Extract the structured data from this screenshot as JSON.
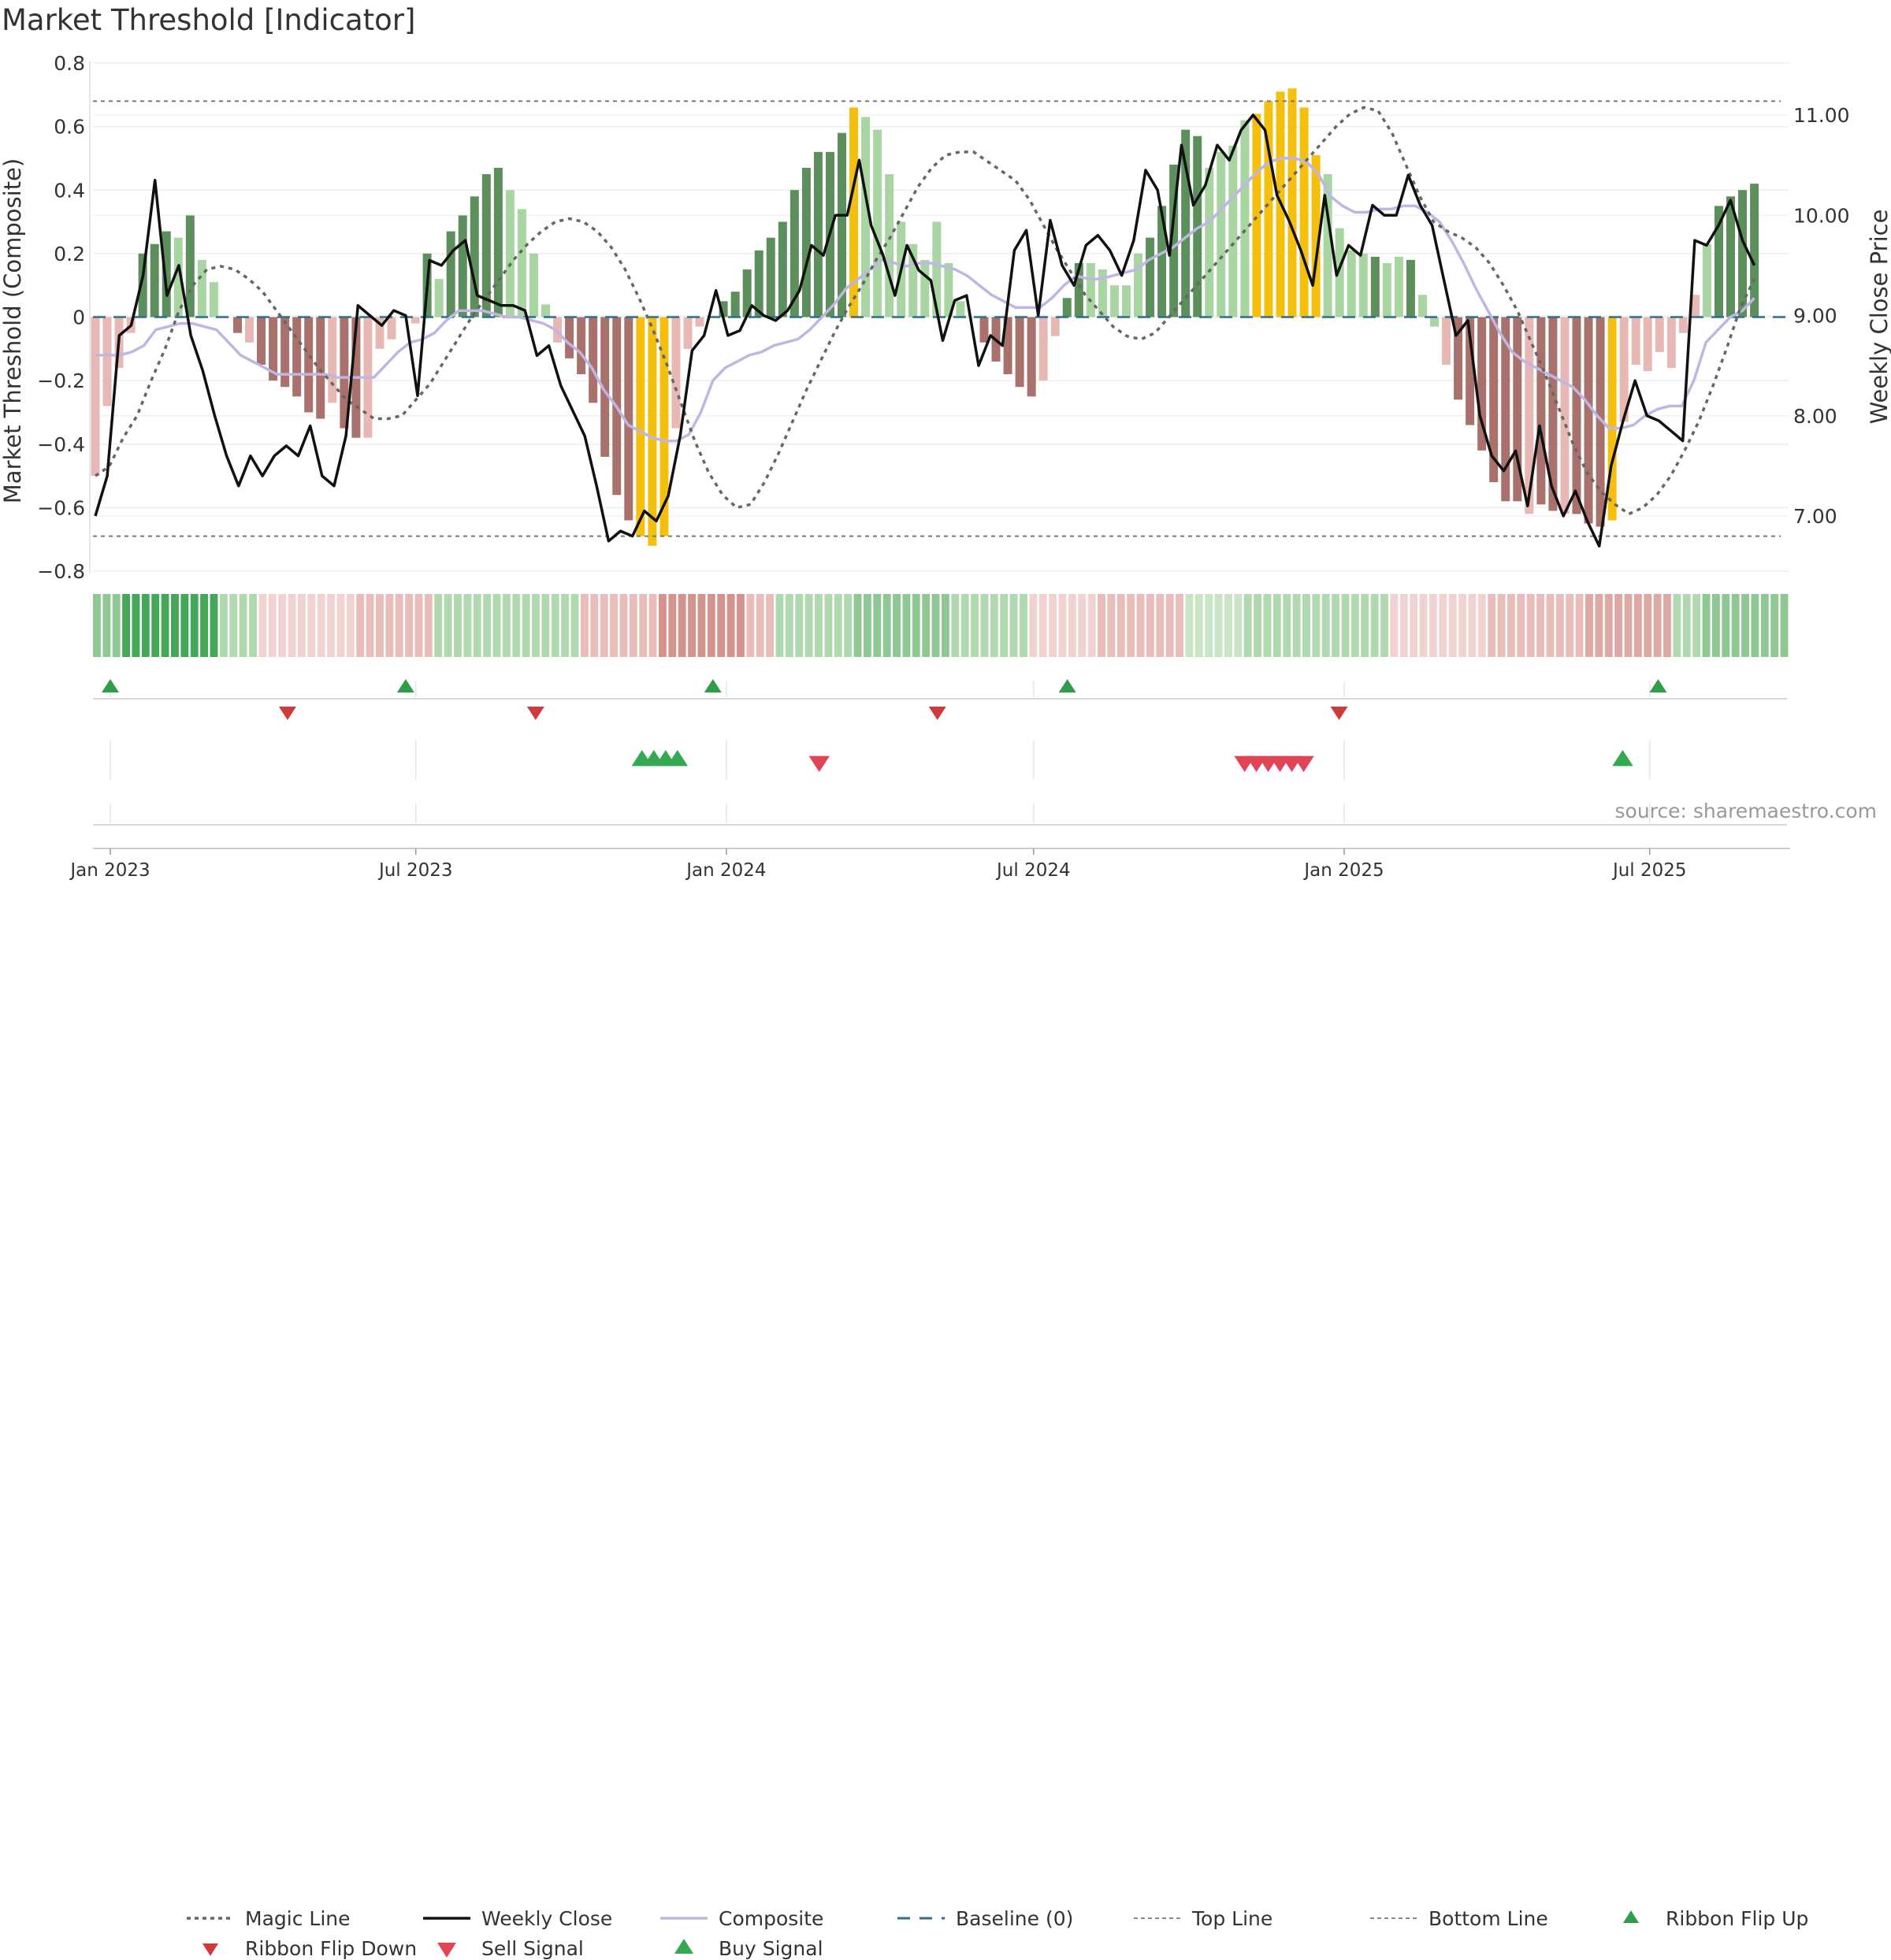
{
  "chart_data": {
    "type": "bar",
    "title": "Market Threshold [Indicator]",
    "ylabel_left": "Market Threshold (Composite)",
    "ylabel_right": "Weekly Close Price",
    "source": "source: sharemaestro.com",
    "ylim_left": [
      -0.8,
      0.8
    ],
    "ylim_right": [
      6.0,
      11.4
    ],
    "yticks_left": [
      "0.8",
      "0.6",
      "0.4",
      "0.2",
      "0",
      "−0.2",
      "−0.4",
      "−0.6",
      "−0.8"
    ],
    "yticks_right": [
      "11.00",
      "10.00",
      "9.00",
      "8.00",
      "7.00"
    ],
    "x_ticks": [
      "Jan 2023",
      "Jul 2023",
      "Jan 2024",
      "Jul 2024",
      "Jan 2025",
      "Jul 2025"
    ],
    "top_line": 0.68,
    "bottom_line": -0.69,
    "bar_colors": {
      "strong_up": "#5c8f5c",
      "weak_up": "#a8d5a2",
      "strong_down": "#a8716c",
      "weak_down": "#e8b8b4",
      "extreme": "#f5bf0e"
    },
    "composite_bars": [
      -0.5,
      -0.28,
      -0.16,
      -0.05,
      0.2,
      0.23,
      0.27,
      0.25,
      0.32,
      0.18,
      0.11,
      0.0,
      -0.05,
      -0.08,
      -0.15,
      -0.2,
      -0.22,
      -0.25,
      -0.3,
      -0.32,
      -0.27,
      -0.35,
      -0.38,
      -0.38,
      -0.1,
      -0.07,
      0.0,
      -0.02,
      0.2,
      0.12,
      0.27,
      0.32,
      0.38,
      0.45,
      0.47,
      0.4,
      0.34,
      0.2,
      0.04,
      -0.08,
      -0.13,
      -0.18,
      -0.27,
      -0.44,
      -0.56,
      -0.64,
      -0.69,
      -0.72,
      -0.69,
      -0.35,
      -0.1,
      -0.03,
      0.0,
      0.05,
      0.08,
      0.15,
      0.21,
      0.25,
      0.3,
      0.4,
      0.47,
      0.52,
      0.52,
      0.58,
      0.66,
      0.63,
      0.59,
      0.45,
      0.3,
      0.23,
      0.18,
      0.3,
      0.17,
      0.05,
      0.0,
      -0.08,
      -0.14,
      -0.18,
      -0.22,
      -0.25,
      -0.2,
      -0.06,
      0.06,
      0.17,
      0.17,
      0.15,
      0.1,
      0.1,
      0.2,
      0.25,
      0.35,
      0.48,
      0.59,
      0.57,
      0.47,
      0.52,
      0.54,
      0.62,
      0.64,
      0.68,
      0.71,
      0.72,
      0.66,
      0.51,
      0.45,
      0.28,
      0.21,
      0.2,
      0.19,
      0.17,
      0.19,
      0.18,
      0.07,
      -0.03,
      -0.15,
      -0.26,
      -0.34,
      -0.42,
      -0.52,
      -0.58,
      -0.58,
      -0.62,
      -0.59,
      -0.61,
      -0.62,
      -0.62,
      -0.65,
      -0.66,
      -0.64,
      -0.33,
      -0.15,
      -0.17,
      -0.11,
      -0.16,
      -0.05,
      0.07,
      0.23,
      0.35,
      0.38,
      0.4,
      0.42
    ],
    "bar_classes": [
      "wd",
      "wd",
      "wd",
      "wd",
      "su",
      "su",
      "su",
      "wu",
      "su",
      "wu",
      "wu",
      "wu",
      "sd",
      "wd",
      "sd",
      "sd",
      "sd",
      "sd",
      "sd",
      "sd",
      "wd",
      "sd",
      "sd",
      "wd",
      "wd",
      "wd",
      "wu",
      "wd",
      "su",
      "wu",
      "su",
      "su",
      "su",
      "su",
      "su",
      "wu",
      "wu",
      "wu",
      "wu",
      "wd",
      "sd",
      "sd",
      "sd",
      "sd",
      "sd",
      "sd",
      "ex",
      "ex",
      "ex",
      "wd",
      "wd",
      "wd",
      "wu",
      "su",
      "su",
      "su",
      "su",
      "su",
      "su",
      "su",
      "su",
      "su",
      "su",
      "su",
      "ex",
      "wu",
      "wu",
      "wu",
      "wu",
      "wu",
      "wu",
      "wu",
      "wu",
      "wu",
      "wu",
      "sd",
      "sd",
      "sd",
      "sd",
      "sd",
      "wd",
      "wd",
      "su",
      "su",
      "wu",
      "wu",
      "wu",
      "wu",
      "wu",
      "su",
      "su",
      "su",
      "su",
      "su",
      "wu",
      "wu",
      "wu",
      "wu",
      "ex",
      "ex",
      "ex",
      "ex",
      "ex",
      "ex",
      "wu",
      "wu",
      "wu",
      "wu",
      "su",
      "wu",
      "wu",
      "su",
      "wu",
      "wu",
      "wd",
      "sd",
      "sd",
      "sd",
      "sd",
      "sd",
      "sd",
      "wd",
      "sd",
      "sd",
      "wd",
      "sd",
      "sd",
      "sd",
      "ex",
      "wd",
      "wd",
      "wd",
      "wd",
      "wd",
      "wd",
      "wd",
      "wu",
      "su",
      "su",
      "su",
      "su",
      "su"
    ],
    "composite_line": [
      -0.12,
      -0.12,
      -0.12,
      -0.11,
      -0.09,
      -0.04,
      -0.03,
      -0.02,
      -0.02,
      -0.03,
      -0.04,
      -0.08,
      -0.12,
      -0.14,
      -0.16,
      -0.18,
      -0.18,
      -0.18,
      -0.18,
      -0.18,
      -0.19,
      -0.19,
      -0.19,
      -0.19,
      -0.15,
      -0.11,
      -0.08,
      -0.07,
      -0.05,
      -0.01,
      0.02,
      0.02,
      0.02,
      0.01,
      0.0,
      0.0,
      -0.01,
      -0.02,
      -0.04,
      -0.08,
      -0.11,
      -0.16,
      -0.23,
      -0.28,
      -0.34,
      -0.36,
      -0.38,
      -0.39,
      -0.39,
      -0.37,
      -0.3,
      -0.2,
      -0.16,
      -0.14,
      -0.12,
      -0.11,
      -0.09,
      -0.08,
      -0.07,
      -0.04,
      0.0,
      0.04,
      0.09,
      0.12,
      0.15,
      0.18,
      0.17,
      0.16,
      0.17,
      0.17,
      0.16,
      0.15,
      0.13,
      0.1,
      0.07,
      0.05,
      0.03,
      0.03,
      0.03,
      0.06,
      0.1,
      0.13,
      0.12,
      0.12,
      0.13,
      0.14,
      0.15,
      0.18,
      0.2,
      0.22,
      0.25,
      0.28,
      0.3,
      0.34,
      0.38,
      0.42,
      0.46,
      0.49,
      0.5,
      0.5,
      0.49,
      0.45,
      0.38,
      0.35,
      0.33,
      0.33,
      0.34,
      0.34,
      0.35,
      0.35,
      0.33,
      0.3,
      0.24,
      0.17,
      0.09,
      0.02,
      -0.05,
      -0.11,
      -0.14,
      -0.16,
      -0.18,
      -0.2,
      -0.22,
      -0.26,
      -0.31,
      -0.35,
      -0.35,
      -0.34,
      -0.31,
      -0.29,
      -0.28,
      -0.28,
      -0.2,
      -0.08,
      -0.04,
      0.0,
      0.02,
      0.06
    ],
    "magic_line": [
      -0.5,
      -0.47,
      -0.38,
      -0.31,
      -0.2,
      -0.1,
      0.02,
      0.1,
      0.15,
      0.16,
      0.15,
      0.12,
      0.08,
      0.02,
      -0.04,
      -0.1,
      -0.16,
      -0.21,
      -0.26,
      -0.29,
      -0.32,
      -0.32,
      -0.31,
      -0.26,
      -0.21,
      -0.14,
      -0.07,
      0.0,
      0.06,
      0.12,
      0.18,
      0.23,
      0.27,
      0.3,
      0.31,
      0.3,
      0.27,
      0.22,
      0.15,
      0.06,
      -0.04,
      -0.15,
      -0.27,
      -0.39,
      -0.49,
      -0.56,
      -0.6,
      -0.59,
      -0.52,
      -0.43,
      -0.33,
      -0.23,
      -0.14,
      -0.05,
      0.03,
      0.1,
      0.18,
      0.25,
      0.33,
      0.41,
      0.47,
      0.51,
      0.52,
      0.52,
      0.49,
      0.46,
      0.43,
      0.37,
      0.29,
      0.21,
      0.14,
      0.07,
      0.02,
      -0.03,
      -0.06,
      -0.07,
      -0.05,
      0.0,
      0.05,
      0.1,
      0.15,
      0.2,
      0.25,
      0.3,
      0.35,
      0.4,
      0.45,
      0.5,
      0.55,
      0.6,
      0.64,
      0.66,
      0.65,
      0.58,
      0.48,
      0.38,
      0.3,
      0.27,
      0.25,
      0.22,
      0.17,
      0.1,
      0.02,
      -0.08,
      -0.18,
      -0.29,
      -0.4,
      -0.49,
      -0.55,
      -0.59,
      -0.62,
      -0.6,
      -0.56,
      -0.5,
      -0.42,
      -0.33,
      -0.22,
      -0.1,
      0.03,
      0.12
    ],
    "weekly_close": [
      7.0,
      7.4,
      8.8,
      8.9,
      9.4,
      10.35,
      9.2,
      9.5,
      8.8,
      8.45,
      8.0,
      7.6,
      7.3,
      7.6,
      7.4,
      7.6,
      7.7,
      7.6,
      7.9,
      7.4,
      7.3,
      7.8,
      9.1,
      9.0,
      8.9,
      9.05,
      9.0,
      8.2,
      9.55,
      9.5,
      9.65,
      9.75,
      9.2,
      9.15,
      9.1,
      9.1,
      9.05,
      8.6,
      8.7,
      8.3,
      8.05,
      7.8,
      7.3,
      6.75,
      6.85,
      6.8,
      7.05,
      6.95,
      7.2,
      7.8,
      8.65,
      8.8,
      9.25,
      8.8,
      8.85,
      9.1,
      9.0,
      8.95,
      9.05,
      9.25,
      9.7,
      9.6,
      10.0,
      10.0,
      10.55,
      9.9,
      9.6,
      9.2,
      9.7,
      9.45,
      9.35,
      8.75,
      9.15,
      9.2,
      8.5,
      8.8,
      8.7,
      9.65,
      9.85,
      9.0,
      9.95,
      9.5,
      9.3,
      9.7,
      9.8,
      9.65,
      9.4,
      9.75,
      10.45,
      10.25,
      9.6,
      10.7,
      10.1,
      10.3,
      10.7,
      10.55,
      10.85,
      11.0,
      10.85,
      10.2,
      9.95,
      9.65,
      9.3,
      10.2,
      9.4,
      9.7,
      9.6,
      10.1,
      10.0,
      10.0,
      10.4,
      10.1,
      9.9,
      9.35,
      8.8,
      8.95,
      8.0,
      7.6,
      7.45,
      7.65,
      7.1,
      7.9,
      7.3,
      7.0,
      7.25,
      6.95,
      6.7,
      7.5,
      7.95,
      8.35,
      8.0,
      7.95,
      7.85,
      7.75,
      9.75,
      9.7,
      9.9,
      10.15,
      9.75,
      9.5
    ],
    "ribbon": {
      "colors": [
        "#45a858",
        "#64b46f",
        "#8fc894",
        "#b0d9b0",
        "#c9e5c6",
        "#f0d3d1",
        "#e9bdba",
        "#dda9a5",
        "#d4948e"
      ],
      "segments": [
        {
          "count": 3,
          "level": 2
        },
        {
          "count": 10,
          "level": 0
        },
        {
          "count": 4,
          "level": 3
        },
        {
          "count": 10,
          "level": 5
        },
        {
          "count": 8,
          "level": 6
        },
        {
          "count": 15,
          "level": 3
        },
        {
          "count": 8,
          "level": 6
        },
        {
          "count": 9,
          "level": 8
        },
        {
          "count": 3,
          "level": 6
        },
        {
          "count": 8,
          "level": 3
        },
        {
          "count": 10,
          "level": 2
        },
        {
          "count": 8,
          "level": 3
        },
        {
          "count": 7,
          "level": 5
        },
        {
          "count": 9,
          "level": 6
        },
        {
          "count": 6,
          "level": 4
        },
        {
          "count": 15,
          "level": 3
        },
        {
          "count": 10,
          "level": 5
        },
        {
          "count": 10,
          "level": 6
        },
        {
          "count": 9,
          "level": 7
        },
        {
          "count": 3,
          "level": 3
        },
        {
          "count": 9,
          "level": 2
        }
      ]
    },
    "ribbon_flip_up": [
      "2023-01-01",
      "2023-06-25",
      "2023-12-24",
      "2024-07-21",
      "2025-07-06"
    ],
    "ribbon_flip_down": [
      "2023-04-16",
      "2023-09-10",
      "2024-05-05",
      "2024-12-29"
    ],
    "buy_signal": [
      "2023-11-12",
      "2023-11-19",
      "2023-11-26",
      "2023-12-03",
      "2025-06-15"
    ],
    "sell_signal": [
      "2024-02-25",
      "2024-11-03",
      "2024-11-10",
      "2024-11-17",
      "2024-11-24",
      "2024-12-01",
      "2024-12-08"
    ]
  },
  "legend": [
    {
      "key": "magic",
      "label": "Magic Line"
    },
    {
      "key": "close",
      "label": "Weekly Close"
    },
    {
      "key": "composite",
      "label": "Composite"
    },
    {
      "key": "baseline",
      "label": "Baseline (0)"
    },
    {
      "key": "top",
      "label": "Top Line"
    },
    {
      "key": "bottom",
      "label": "Bottom Line"
    },
    {
      "key": "flipup",
      "label": "Ribbon Flip Up"
    },
    {
      "key": "flipdown",
      "label": "Ribbon Flip Down"
    },
    {
      "key": "sell",
      "label": "Sell Signal"
    },
    {
      "key": "buy",
      "label": "Buy Signal"
    }
  ]
}
